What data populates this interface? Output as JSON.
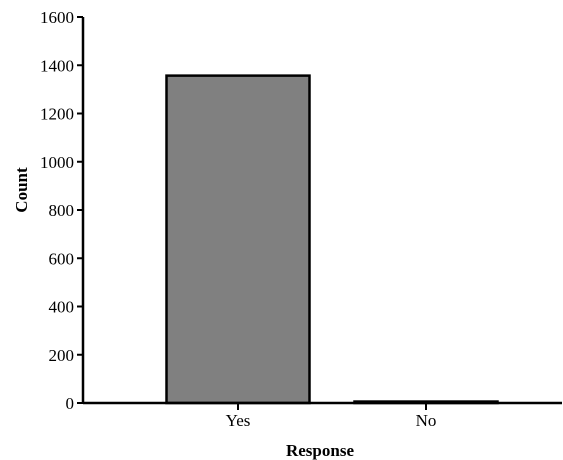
{
  "chart_data": {
    "type": "bar",
    "categories": [
      "Yes",
      "No"
    ],
    "values": [
      1357,
      6
    ],
    "xlabel": "Response",
    "ylabel": "Count",
    "ylim": [
      0,
      1600
    ],
    "yticks": [
      0,
      200,
      400,
      600,
      800,
      1000,
      1200,
      1400,
      1600
    ],
    "grid": false,
    "bar_color": "#808080",
    "bar_outline_color": "#000000"
  }
}
